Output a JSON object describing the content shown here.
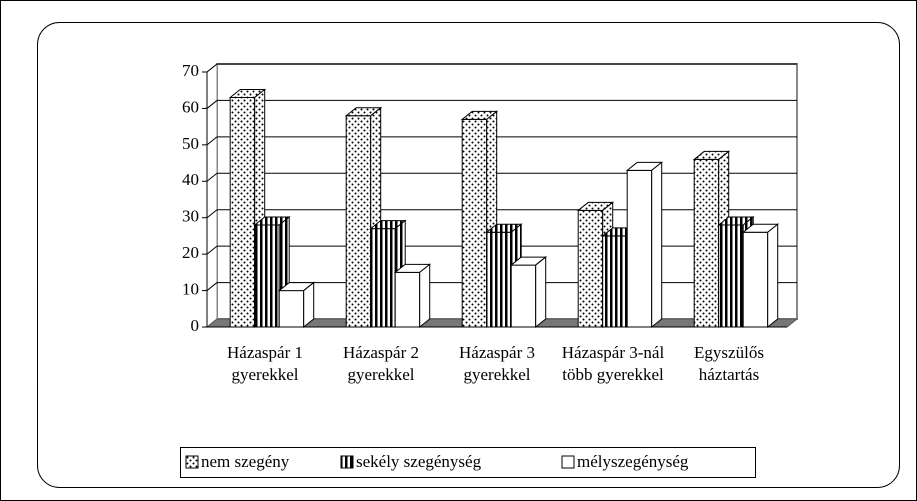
{
  "chart_data": {
    "type": "bar3d",
    "categories": [
      "Házaspár 1 gyerekkel",
      "Házaspár 2 gyerekkel",
      "Házaspár 3 gyerekkel",
      "Házaspár 3-nál több gyerekkel",
      "Egyszülős háztartás"
    ],
    "series": [
      {
        "name": "nem szegény",
        "pattern": "dots",
        "values": [
          63,
          58,
          57,
          32,
          46
        ]
      },
      {
        "name": "sekély szegénység",
        "pattern": "stripes",
        "values": [
          28,
          27,
          26,
          25,
          28
        ]
      },
      {
        "name": "mélyszegénység",
        "pattern": "none",
        "values": [
          10,
          15,
          17,
          43,
          26
        ]
      }
    ],
    "ylim": [
      0,
      70
    ],
    "yticks": [
      0,
      10,
      20,
      30,
      40,
      50,
      60,
      70
    ],
    "grid": true,
    "legend": "bottom"
  }
}
